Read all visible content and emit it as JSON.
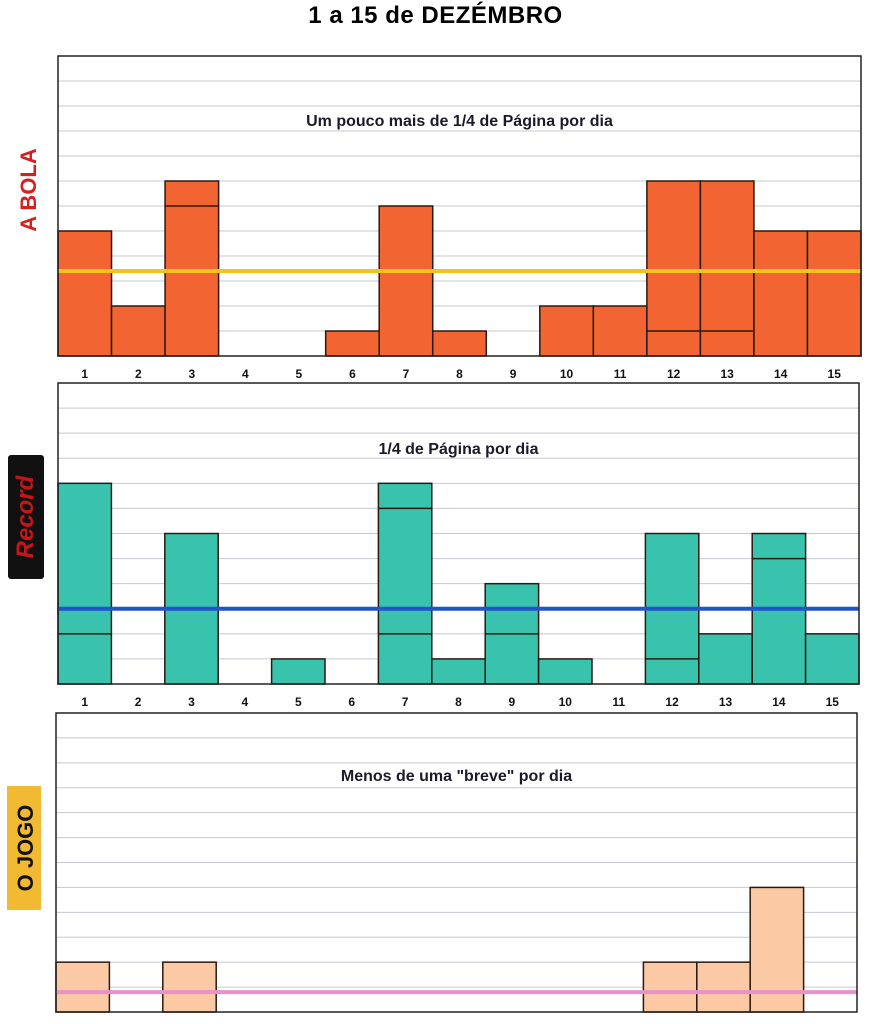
{
  "title": "1 a 15  de  DEZÉMBRO",
  "chart_data": [
    {
      "type": "bar",
      "logo": "A BOLA",
      "title": "Um pouco mais de 1/4 de Página por dia",
      "categories": [
        "1",
        "2",
        "3",
        "4",
        "5",
        "6",
        "7",
        "8",
        "9",
        "10",
        "11",
        "12",
        "13",
        "14",
        "15"
      ],
      "values": [
        5,
        2,
        7,
        0,
        0,
        1,
        6,
        1,
        0,
        2,
        2,
        7,
        7,
        5,
        5
      ],
      "inner_dividers": [
        [],
        [],
        [
          6
        ],
        [],
        [],
        [],
        [],
        [],
        [],
        [],
        [],
        [
          1
        ],
        [
          1
        ],
        [],
        []
      ],
      "average": 3.4,
      "ylim": [
        0,
        12
      ],
      "grid": true,
      "colors": {
        "bar": "#f26431",
        "average": "#f4c21d",
        "logo": "#d81e1e"
      }
    },
    {
      "type": "bar",
      "logo": "Record",
      "title": "1/4 de Página por dia",
      "categories": [
        "1",
        "2",
        "3",
        "4",
        "5",
        "6",
        "7",
        "8",
        "9",
        "10",
        "11",
        "12",
        "13",
        "14",
        "15"
      ],
      "values": [
        8,
        0,
        6,
        0,
        1,
        0,
        8,
        1,
        4,
        1,
        0,
        6,
        2,
        6,
        2
      ],
      "inner_dividers": [
        [
          2
        ],
        [],
        [],
        [],
        [],
        [],
        [
          2,
          7
        ],
        [],
        [
          2
        ],
        [],
        [],
        [
          1
        ],
        [],
        [
          5
        ],
        []
      ],
      "average": 3.0,
      "ylim": [
        0,
        12
      ],
      "grid": true,
      "colors": {
        "bar": "#39c3ad",
        "average": "#2154c8",
        "logo": "#c4161c"
      }
    },
    {
      "type": "bar",
      "logo": "O JOGO",
      "title": "Menos de uma \"breve\" por dia",
      "categories": [
        "1",
        "2",
        "3",
        "4",
        "5",
        "6",
        "7",
        "8",
        "9",
        "10",
        "11",
        "12",
        "13",
        "14",
        "15"
      ],
      "values": [
        2,
        0,
        2,
        0,
        0,
        0,
        0,
        0,
        0,
        0,
        0,
        2,
        2,
        5,
        0
      ],
      "inner_dividers": [
        [],
        [],
        [],
        [],
        [],
        [],
        [],
        [],
        [],
        [],
        [],
        [],
        [],
        [],
        []
      ],
      "average": 0.8,
      "ylim": [
        0,
        12
      ],
      "grid": true,
      "colors": {
        "bar": "#fbc9a4",
        "average": "#e892c8",
        "logo": "#f1ba32"
      }
    }
  ]
}
